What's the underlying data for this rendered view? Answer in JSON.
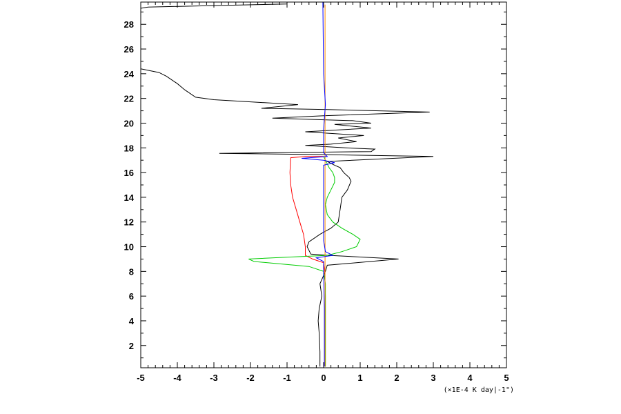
{
  "chart_data": {
    "type": "line",
    "title": "",
    "xlabel": "(×1E-4 K day|-1\")",
    "ylabel": "",
    "xlim": [
      -5,
      5
    ],
    "ylim": [
      0.2,
      29.8
    ],
    "x_ticks": [
      -5,
      -4,
      -3,
      -2,
      -1,
      0,
      1,
      2,
      3,
      4,
      5
    ],
    "y_ticks": [
      2,
      4,
      6,
      8,
      10,
      12,
      14,
      16,
      18,
      20,
      22,
      24,
      26,
      28
    ],
    "x_tick_labels": [
      "-5",
      "-4",
      "-3",
      "-2",
      "-1",
      "0",
      "1",
      "2",
      "3",
      "4",
      "5"
    ],
    "y_tick_labels": [
      "2",
      "4",
      "6",
      "8",
      "10",
      "12",
      "14",
      "16",
      "18",
      "20",
      "22",
      "24",
      "26",
      "28"
    ],
    "grid": false,
    "series": [
      {
        "color": "#000000",
        "points": [
          [
            -0.1,
            0.3
          ],
          [
            -0.1,
            1.5
          ],
          [
            -0.12,
            3
          ],
          [
            -0.15,
            4
          ],
          [
            -0.12,
            5
          ],
          [
            -0.05,
            6
          ],
          [
            -0.1,
            7
          ],
          [
            0.05,
            8
          ],
          [
            0.1,
            8.5
          ],
          [
            2.05,
            9
          ],
          [
            0.15,
            9.3
          ],
          [
            -0.35,
            9.4
          ],
          [
            -0.45,
            10.0
          ],
          [
            -0.4,
            10.4
          ],
          [
            -0.1,
            11.0
          ],
          [
            0.2,
            11.5
          ],
          [
            0.4,
            12.0
          ],
          [
            0.45,
            13.0
          ],
          [
            0.5,
            14.0
          ],
          [
            0.65,
            14.6
          ],
          [
            0.75,
            15.3
          ],
          [
            0.7,
            15.6
          ],
          [
            0.55,
            16.0
          ],
          [
            0.45,
            16.4
          ],
          [
            0.3,
            16.6
          ],
          [
            0.1,
            16.9
          ],
          [
            3.0,
            17.3
          ],
          [
            0.1,
            17.45
          ],
          [
            -2.85,
            17.55
          ],
          [
            1.3,
            17.7
          ],
          [
            1.4,
            17.9
          ],
          [
            0.6,
            18.0
          ],
          [
            -0.5,
            18.2
          ],
          [
            0.2,
            18.3
          ],
          [
            0.9,
            18.5
          ],
          [
            0.4,
            18.8
          ],
          [
            1.1,
            19.0
          ],
          [
            -0.5,
            19.3
          ],
          [
            1.3,
            19.6
          ],
          [
            0.3,
            19.9
          ],
          [
            1.3,
            20.0
          ],
          [
            0.8,
            20.2
          ],
          [
            -1.4,
            20.4
          ],
          [
            0.0,
            20.6
          ],
          [
            2.9,
            20.9
          ],
          [
            0.1,
            21.1
          ],
          [
            -1.7,
            21.2
          ],
          [
            -0.7,
            21.5
          ],
          [
            -3.0,
            21.9
          ],
          [
            -3.5,
            22.1
          ],
          [
            -3.8,
            22.7
          ],
          [
            -4.0,
            23.2
          ],
          [
            -4.3,
            23.8
          ],
          [
            -4.5,
            24.1
          ],
          [
            -5,
            24.4
          ]
        ]
      },
      {
        "color": "#000000",
        "points": [
          [
            -5,
            29.3
          ],
          [
            -4.8,
            29.4
          ],
          [
            -1.0,
            29.65
          ],
          [
            -1.0,
            29.8
          ]
        ]
      },
      {
        "color": "#ff0000",
        "points": [
          [
            0.05,
            0.3
          ],
          [
            0.05,
            2
          ],
          [
            0.05,
            4
          ],
          [
            0.05,
            6
          ],
          [
            0.03,
            8
          ],
          [
            0.0,
            8.7
          ],
          [
            -0.3,
            9.0
          ],
          [
            -0.5,
            9.3
          ],
          [
            -0.5,
            10
          ],
          [
            -0.55,
            11
          ],
          [
            -0.65,
            12
          ],
          [
            -0.75,
            13
          ],
          [
            -0.85,
            14
          ],
          [
            -0.9,
            15
          ],
          [
            -0.92,
            16
          ],
          [
            -0.9,
            17.2
          ],
          [
            -0.5,
            17.3
          ],
          [
            0.0,
            17.3
          ]
        ]
      },
      {
        "color": "#00cc00",
        "points": [
          [
            0.05,
            0.3
          ],
          [
            0.05,
            4
          ],
          [
            0.05,
            7
          ],
          [
            0.0,
            8.0
          ],
          [
            -0.4,
            8.4
          ],
          [
            -1.9,
            8.8
          ],
          [
            -2.05,
            9.0
          ],
          [
            -1.0,
            9.15
          ],
          [
            0.1,
            9.3
          ],
          [
            0.5,
            9.6
          ],
          [
            0.9,
            10.0
          ],
          [
            1.0,
            10.6
          ],
          [
            0.8,
            11.0
          ],
          [
            0.5,
            11.5
          ],
          [
            0.25,
            12.0
          ],
          [
            0.1,
            12.6
          ],
          [
            0.05,
            13.4
          ],
          [
            0.1,
            14.0
          ],
          [
            0.2,
            14.6
          ],
          [
            0.3,
            15.2
          ],
          [
            0.3,
            15.6
          ],
          [
            0.25,
            16.0
          ],
          [
            0.15,
            16.4
          ],
          [
            0.05,
            17.0
          ],
          [
            0.0,
            17.3
          ]
        ]
      },
      {
        "color": "#ff8c00",
        "points": [
          [
            0.04,
            0.3
          ],
          [
            0.04,
            29.6
          ]
        ]
      },
      {
        "color": "#0000ff",
        "points": [
          [
            0.02,
            0.3
          ],
          [
            0.02,
            5
          ],
          [
            0.0,
            8
          ],
          [
            0.0,
            8.8
          ],
          [
            -0.2,
            9.1
          ],
          [
            0.25,
            9.3
          ],
          [
            0.05,
            9.6
          ],
          [
            0.0,
            10.5
          ],
          [
            0.0,
            16.6
          ],
          [
            0.3,
            16.8
          ],
          [
            0.0,
            17.0
          ],
          [
            -0.6,
            17.15
          ],
          [
            0.1,
            17.3
          ],
          [
            0.0,
            17.6
          ],
          [
            0.0,
            19.5
          ],
          [
            0.05,
            21.5
          ],
          [
            0.0,
            24
          ],
          [
            -0.02,
            29.8
          ]
        ]
      }
    ]
  }
}
